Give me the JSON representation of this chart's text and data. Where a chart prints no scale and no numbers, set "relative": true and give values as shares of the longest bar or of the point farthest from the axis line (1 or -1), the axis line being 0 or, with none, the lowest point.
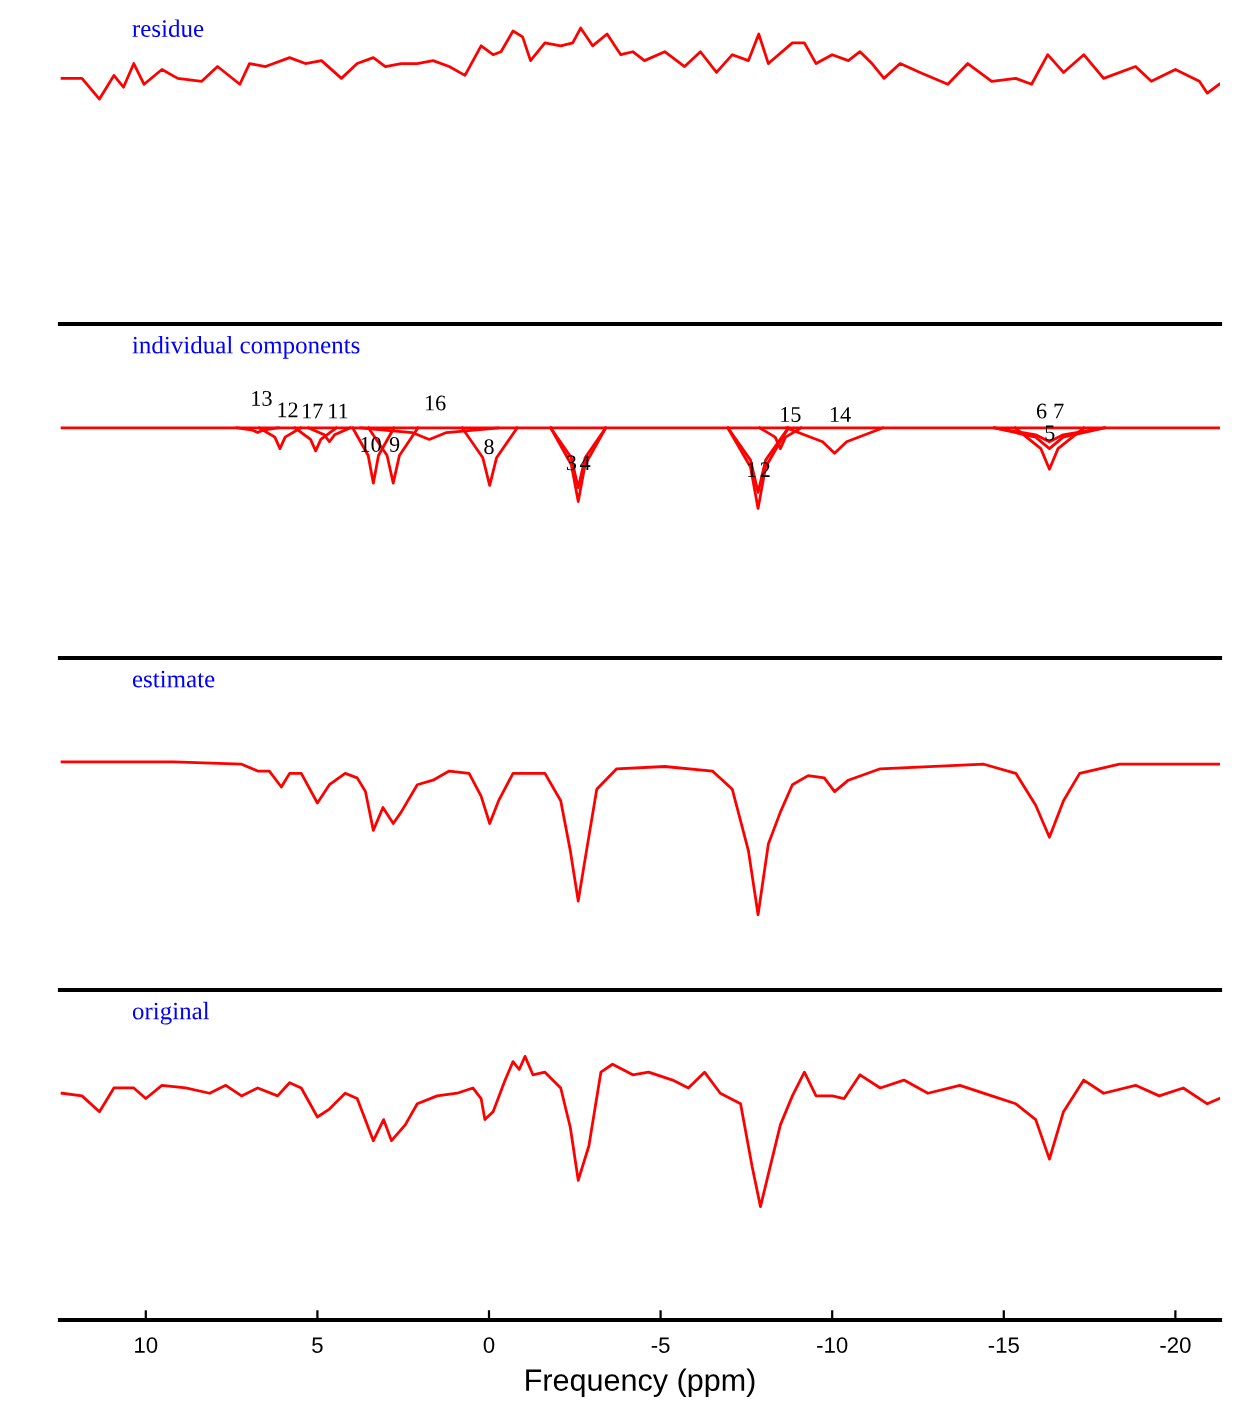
{
  "chart_data": [
    {
      "type": "line",
      "title": "residue",
      "relative": true,
      "xlim": [
        12.5,
        -21.3
      ],
      "tick_labels": false,
      "series": [
        {
          "color": "#ff0000",
          "x": [
            12.44,
            11.86,
            11.35,
            10.93,
            10.65,
            10.35,
            10.05,
            9.53,
            9.07,
            8.37,
            7.91,
            7.26,
            6.98,
            6.51,
            5.81,
            5.35,
            4.88,
            4.3,
            3.84,
            3.37,
            3.02,
            2.56,
            2.09,
            1.63,
            1.16,
            0.7,
            0.23,
            -0.12,
            -0.35,
            -0.7,
            -0.98,
            -1.21,
            -1.63,
            -2.09,
            -2.44,
            -2.67,
            -3.02,
            -3.44,
            -3.84,
            -4.19,
            -4.53,
            -5.12,
            -5.7,
            -6.16,
            -6.63,
            -7.09,
            -7.56,
            -7.86,
            -8.14,
            -8.84,
            -9.19,
            -9.53,
            -10.0,
            -10.47,
            -10.81,
            -11.16,
            -11.51,
            -11.98,
            -12.56,
            -13.37,
            -13.95,
            -14.65,
            -15.35,
            -15.81,
            -16.28,
            -16.74,
            -17.33,
            -17.91,
            -18.84,
            -19.3,
            -20.0,
            -20.7,
            -20.93,
            -21.28
          ],
          "values": [
            0.83,
            0.83,
            0.76,
            0.84,
            0.8,
            0.88,
            0.81,
            0.86,
            0.83,
            0.82,
            0.87,
            0.81,
            0.88,
            0.87,
            0.9,
            0.88,
            0.89,
            0.83,
            0.88,
            0.9,
            0.87,
            0.88,
            0.88,
            0.89,
            0.87,
            0.84,
            0.94,
            0.91,
            0.92,
            0.99,
            0.97,
            0.89,
            0.95,
            0.94,
            0.95,
            1,
            0.94,
            0.98,
            0.91,
            0.92,
            0.89,
            0.92,
            0.87,
            0.92,
            0.85,
            0.91,
            0.89,
            0.98,
            0.88,
            0.95,
            0.95,
            0.88,
            0.91,
            0.89,
            0.92,
            0.88,
            0.83,
            0.88,
            0.85,
            0.81,
            0.88,
            0.82,
            0.83,
            0.81,
            0.91,
            0.85,
            0.91,
            0.83,
            0.87,
            0.82,
            0.86,
            0.82,
            0.78,
            0.81
          ]
        }
      ]
    },
    {
      "type": "line",
      "title": "individual components",
      "relative": true,
      "xlim": [
        12.5,
        -21.3
      ],
      "tick_labels": false,
      "series": [
        {
          "color": "#ff0000",
          "x": [
            12.44,
            -21.28
          ],
          "values": [
            1,
            1
          ]
        },
        {
          "color": "#ff0000",
          "x": [
            7.34,
            6.89,
            6.74,
            6.59,
            6.14
          ],
          "values": [
            1,
            0.99,
            0.98,
            0.99,
            1
          ]
        },
        {
          "color": "#ff0000",
          "x": [
            6.69,
            6.24,
            6.09,
            5.94,
            5.49
          ],
          "values": [
            1,
            0.96,
            0.91,
            0.96,
            1
          ]
        },
        {
          "color": "#ff0000",
          "x": [
            5.65,
            5.2,
            5.05,
            4.9,
            4.45
          ],
          "values": [
            1,
            0.95,
            0.9,
            0.95,
            1
          ]
        },
        {
          "color": "#ff0000",
          "x": [
            5.25,
            4.8,
            4.65,
            4.5,
            4.05
          ],
          "values": [
            1,
            0.97,
            0.94,
            0.97,
            1
          ]
        },
        {
          "color": "#ff0000",
          "x": [
            3.97,
            3.52,
            3.37,
            3.22,
            2.77
          ],
          "values": [
            1,
            0.88,
            0.76,
            0.88,
            1
          ]
        },
        {
          "color": "#ff0000",
          "x": [
            3.51,
            2.97,
            2.79,
            2.61,
            2.07
          ],
          "values": [
            1,
            0.88,
            0.76,
            0.88,
            1
          ]
        },
        {
          "color": "#ff0000",
          "x": [
            3.74,
            2.24,
            1.74,
            1.24,
            -0.26
          ],
          "values": [
            1,
            0.98,
            0.95,
            0.98,
            1
          ]
        },
        {
          "color": "#ff0000",
          "x": [
            0.78,
            0.18,
            -0.02,
            -0.22,
            -0.82
          ],
          "values": [
            1,
            0.87,
            0.75,
            0.87,
            1
          ]
        },
        {
          "color": "#ff0000",
          "x": [
            -1.8,
            -2.4,
            -2.6,
            -2.8,
            -3.4
          ],
          "values": [
            1,
            0.84,
            0.68,
            0.84,
            1
          ]
        },
        {
          "color": "#ff0000",
          "x": [
            -1.8,
            -2.4,
            -2.6,
            -2.8,
            -3.4
          ],
          "values": [
            1,
            0.87,
            0.74,
            0.87,
            1
          ]
        },
        {
          "color": "#ff0000",
          "x": [
            -6.96,
            -7.62,
            -7.84,
            -8.06,
            -8.72
          ],
          "values": [
            1,
            0.83,
            0.65,
            0.83,
            1
          ]
        },
        {
          "color": "#ff0000",
          "x": [
            -6.96,
            -7.62,
            -7.84,
            -8.06,
            -8.72
          ],
          "values": [
            1,
            0.86,
            0.72,
            0.86,
            1
          ]
        },
        {
          "color": "#ff0000",
          "x": [
            -7.89,
            -8.34,
            -8.49,
            -8.64,
            -9.09
          ],
          "values": [
            1,
            0.96,
            0.91,
            0.96,
            1
          ]
        },
        {
          "color": "#ff0000",
          "x": [
            -8.67,
            -9.72,
            -10.07,
            -10.42,
            -11.47
          ],
          "values": [
            1,
            0.94,
            0.89,
            0.94,
            1
          ]
        },
        {
          "color": "#ff0000",
          "x": [
            -15.33,
            -16.08,
            -16.33,
            -16.58,
            -17.33
          ],
          "values": [
            1,
            0.91,
            0.82,
            0.91,
            1
          ]
        },
        {
          "color": "#ff0000",
          "x": [
            -14.73,
            -15.93,
            -16.33,
            -16.73,
            -17.93
          ],
          "values": [
            1,
            0.96,
            0.91,
            0.96,
            1
          ]
        },
        {
          "color": "#ff0000",
          "x": [
            -14.73,
            -15.93,
            -16.33,
            -16.73,
            -17.93
          ],
          "values": [
            1,
            0.97,
            0.94,
            0.97,
            1
          ]
        }
      ],
      "annotations": [
        "13",
        "12",
        "17",
        "11",
        "16",
        {
          "text": "10",
          "x": 3.45,
          "y": 0.92
        },
        {
          "text": "9",
          "x": 2.75,
          "y": 0.92
        },
        {
          "text": "8",
          "x": 0,
          "y": 0.91
        },
        {
          "text": "3",
          "x": -2.4,
          "y": 0.84
        },
        {
          "text": "4",
          "x": -2.8,
          "y": 0.84
        },
        {
          "text": "1",
          "x": -7.65,
          "y": 0.81
        },
        {
          "text": "2",
          "x": -8.05,
          "y": 0.81
        },
        "15",
        "14",
        "6",
        "7",
        {
          "text": "5",
          "x": -16.34,
          "y": 0.97
        }
      ]
    },
    {
      "type": "line",
      "title": "estimate",
      "relative": true,
      "xlim": [
        12.5,
        -21.3
      ],
      "tick_labels": false,
      "series": [
        {
          "color": "#ff0000",
          "x": [
            12.44,
            9.19,
            7.21,
            6.74,
            6.4,
            6.05,
            5.81,
            5.47,
            5.0,
            4.65,
            4.19,
            3.84,
            3.6,
            3.37,
            3.09,
            2.79,
            2.56,
            2.09,
            1.63,
            1.16,
            0.58,
            0.23,
            -0.02,
            -0.28,
            -0.7,
            -1.63,
            -2.09,
            -2.37,
            -2.6,
            -2.84,
            -3.14,
            -3.72,
            -5.12,
            -6.51,
            -7.09,
            -7.56,
            -7.84,
            -8.14,
            -8.49,
            -8.84,
            -9.3,
            -9.77,
            -10.07,
            -10.47,
            -11.4,
            -14.42,
            -15.35,
            -15.93,
            -16.33,
            -16.74,
            -17.21,
            -18.37,
            -20.7,
            -21.28
          ],
          "values": [
            1,
            1,
            0.99,
            0.96,
            0.96,
            0.89,
            0.95,
            0.95,
            0.82,
            0.9,
            0.95,
            0.93,
            0.87,
            0.7,
            0.8,
            0.73,
            0.78,
            0.9,
            0.92,
            0.96,
            0.95,
            0.85,
            0.73,
            0.83,
            0.95,
            0.95,
            0.83,
            0.61,
            0.39,
            0.61,
            0.88,
            0.97,
            0.98,
            0.96,
            0.88,
            0.61,
            0.33,
            0.64,
            0.78,
            0.9,
            0.94,
            0.93,
            0.87,
            0.92,
            0.97,
            0.99,
            0.95,
            0.81,
            0.67,
            0.83,
            0.95,
            0.99,
            0.99,
            0.99
          ]
        }
      ]
    },
    {
      "type": "line",
      "title": "original",
      "relative": true,
      "xlim": [
        12.5,
        -21.3
      ],
      "xlabel": "Frequency (ppm)",
      "xticks": [
        10,
        5,
        0,
        -5,
        -10,
        -15,
        -20
      ],
      "series": [
        {
          "color": "#ff0000",
          "x": [
            12.44,
            11.86,
            11.35,
            10.93,
            10.35,
            10.0,
            9.53,
            8.84,
            8.14,
            7.67,
            7.21,
            6.74,
            6.16,
            5.81,
            5.47,
            5.0,
            4.65,
            4.19,
            3.84,
            3.37,
            3.07,
            2.84,
            2.44,
            2.09,
            1.51,
            0.93,
            0.47,
            0.23,
            0.12,
            -0.12,
            -0.47,
            -0.7,
            -0.88,
            -1.05,
            -1.28,
            -1.63,
            -2.09,
            -2.37,
            -2.6,
            -2.91,
            -3.26,
            -3.6,
            -4.19,
            -4.65,
            -5.35,
            -5.81,
            -6.28,
            -6.74,
            -7.33,
            -7.67,
            -7.91,
            -8.19,
            -8.49,
            -8.84,
            -9.19,
            -9.53,
            -10.0,
            -10.35,
            -10.81,
            -11.4,
            -12.09,
            -12.79,
            -13.72,
            -14.65,
            -15.35,
            -15.93,
            -16.33,
            -16.74,
            -17.33,
            -17.91,
            -18.84,
            -19.53,
            -20.23,
            -20.93,
            -21.28
          ],
          "values": [
            0.86,
            0.85,
            0.79,
            0.88,
            0.88,
            0.84,
            0.89,
            0.88,
            0.86,
            0.89,
            0.85,
            0.88,
            0.85,
            0.9,
            0.88,
            0.77,
            0.8,
            0.86,
            0.84,
            0.68,
            0.76,
            0.68,
            0.74,
            0.82,
            0.85,
            0.86,
            0.88,
            0.84,
            0.76,
            0.79,
            0.91,
            0.98,
            0.95,
            1,
            0.93,
            0.94,
            0.88,
            0.73,
            0.53,
            0.66,
            0.94,
            0.97,
            0.93,
            0.94,
            0.91,
            0.88,
            0.94,
            0.86,
            0.82,
            0.58,
            0.43,
            0.58,
            0.74,
            0.85,
            0.94,
            0.85,
            0.85,
            0.84,
            0.93,
            0.88,
            0.91,
            0.86,
            0.89,
            0.85,
            0.82,
            0.76,
            0.61,
            0.79,
            0.91,
            0.86,
            0.89,
            0.85,
            0.88,
            0.82,
            0.84
          ]
        }
      ]
    }
  ]
}
